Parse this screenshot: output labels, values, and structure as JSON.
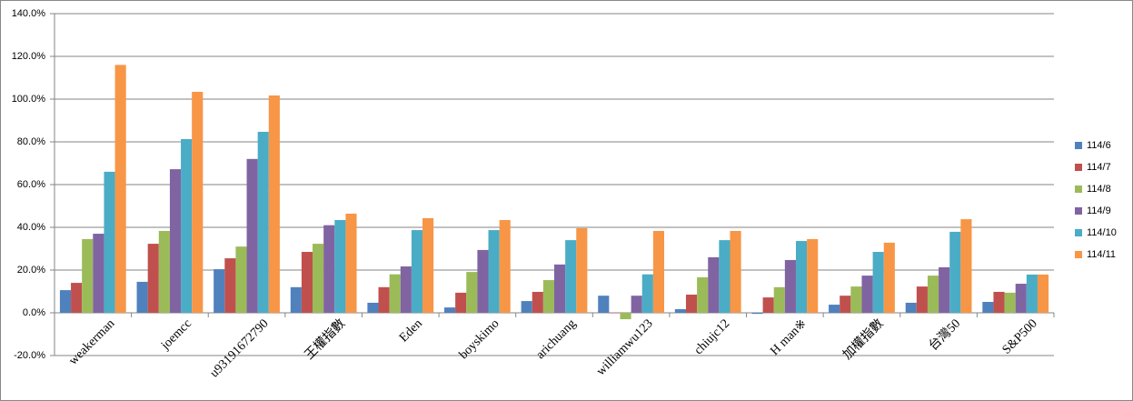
{
  "chart_data": {
    "type": "bar",
    "categories": [
      "weakerman",
      "joemcc",
      "u93191672790",
      "王權指數",
      "Eden",
      "boyskimo",
      "arichuang",
      "williamwu123",
      "chiujc12",
      "H man※",
      "加權指數",
      "台灣50",
      "S&P500"
    ],
    "series": [
      {
        "name": "114/6",
        "color": "#4f81bd",
        "values": [
          10.6,
          14.5,
          20.4,
          12,
          4.7,
          2.5,
          5.5,
          8,
          1.7,
          -0.5,
          3.8,
          4.7,
          5.1
        ]
      },
      {
        "name": "114/7",
        "color": "#c0504d",
        "values": [
          14,
          32.3,
          25.5,
          28.5,
          12,
          9.4,
          9.8,
          0,
          8.5,
          7.2,
          8,
          12.3,
          9.8
        ]
      },
      {
        "name": "114/8",
        "color": "#9bbb59",
        "values": [
          34.5,
          38.3,
          31,
          32.3,
          18,
          19.1,
          15.3,
          -3,
          16.6,
          12,
          12.3,
          17.4,
          9.4
        ]
      },
      {
        "name": "114/9",
        "color": "#8064a2",
        "values": [
          37,
          67.2,
          72,
          41,
          21.7,
          29.4,
          22.6,
          8,
          26,
          24.7,
          17.4,
          21.3,
          13.6
        ]
      },
      {
        "name": "114/10",
        "color": "#4bacc6",
        "values": [
          66,
          81.3,
          84.7,
          43.4,
          38.7,
          38.7,
          34,
          18,
          34,
          33.6,
          28.5,
          37.9,
          17.9
        ]
      },
      {
        "name": "114/11",
        "color": "#f79646",
        "values": [
          116,
          103.4,
          101.7,
          46.4,
          44.3,
          43.4,
          39.6,
          38.3,
          38.3,
          34.5,
          32.8,
          43.8,
          17.9
        ]
      }
    ],
    "ylim": [
      -20,
      140
    ],
    "yticks": [
      {
        "value": -20,
        "label": "-20.0%"
      },
      {
        "value": 0,
        "label": "0.0%"
      },
      {
        "value": 20,
        "label": "20.0%"
      },
      {
        "value": 40,
        "label": "40.0%"
      },
      {
        "value": 60,
        "label": "60.0%"
      },
      {
        "value": 80,
        "label": "80.0%"
      },
      {
        "value": 100,
        "label": "100.0%"
      },
      {
        "value": 120,
        "label": "120.0%"
      },
      {
        "value": 140,
        "label": "140.0%"
      }
    ],
    "grid": true,
    "legend": "right"
  }
}
